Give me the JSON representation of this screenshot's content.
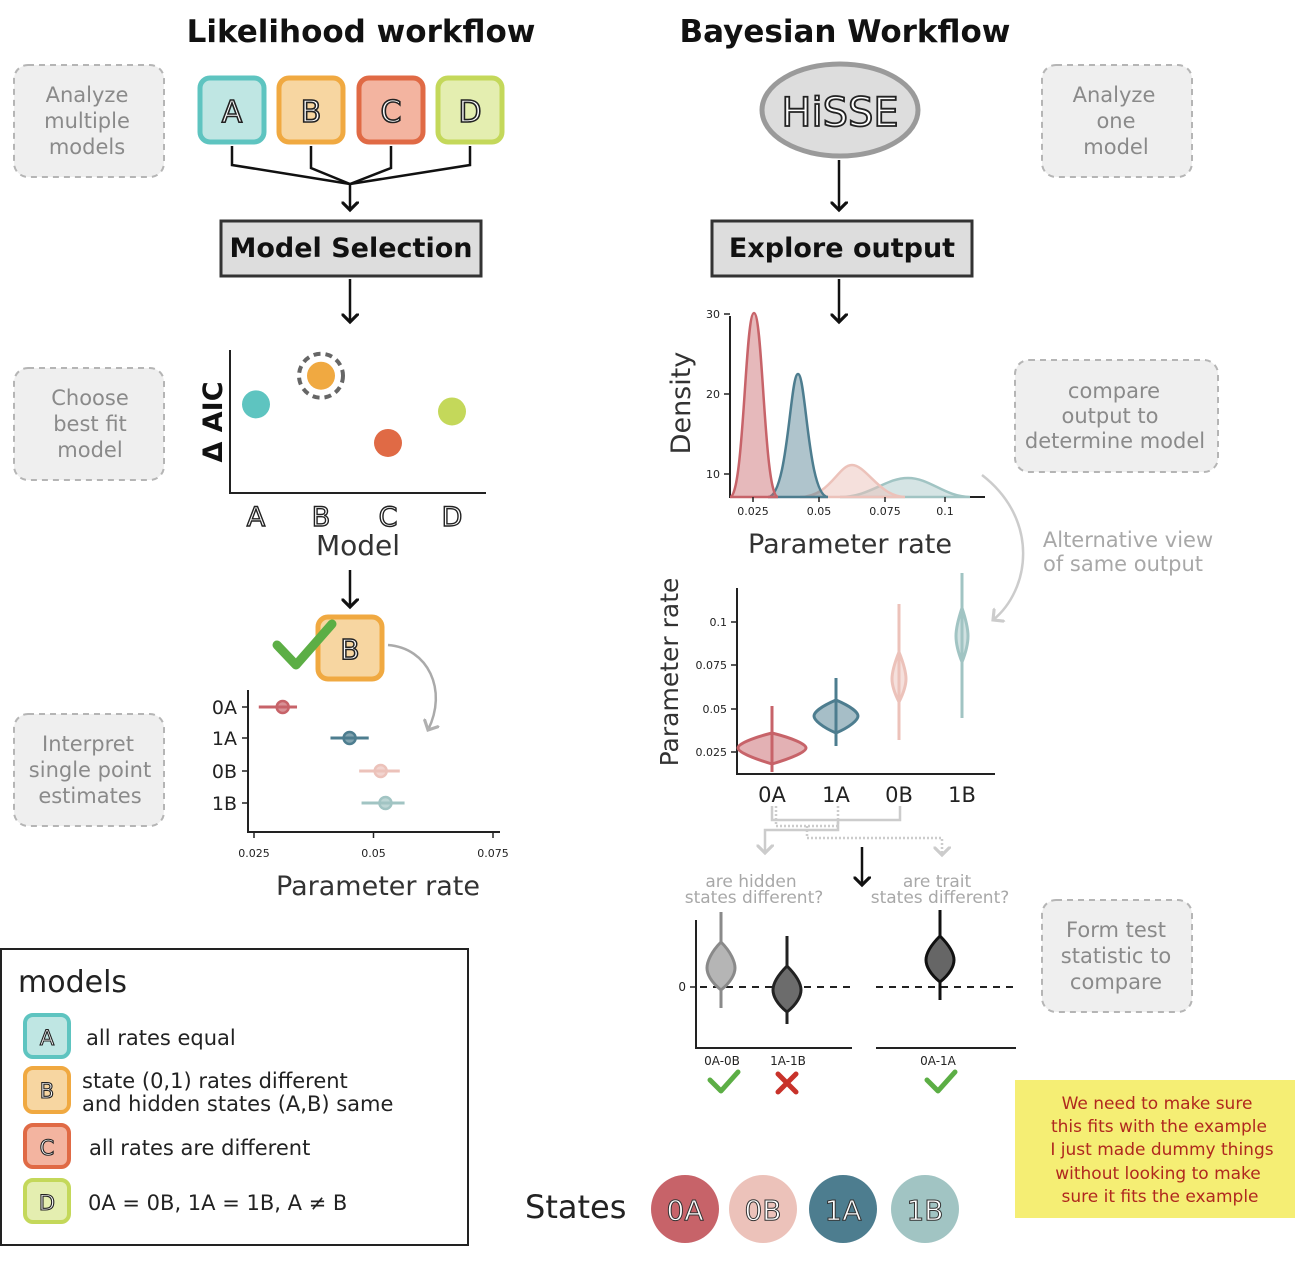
{
  "titles": {
    "likelihood": "Likelihood workflow",
    "bayesian": "Bayesian Workflow"
  },
  "notes": {
    "analyze_multiple": [
      "Analyze",
      "multiple",
      "models"
    ],
    "choose_best": [
      "Choose",
      "best fit",
      "model"
    ],
    "interpret": [
      "Interpret",
      "single point",
      "estimates"
    ],
    "analyze_one": [
      "Analyze",
      "one",
      "model"
    ],
    "compare_output": [
      "compare",
      "output to",
      "determine model"
    ],
    "form_test": [
      "Form test",
      "statistic to",
      "compare"
    ]
  },
  "models": [
    "A",
    "B",
    "C",
    "D"
  ],
  "boxes": {
    "model_selection": "Model Selection",
    "explore_output": "Explore output",
    "hisse": "HiSSE"
  },
  "colors": {
    "A": "#5ec4c0",
    "A_fill": "#bfe6e3",
    "B": "#f0a941",
    "B_fill": "#f7d6a1",
    "C": "#e06a45",
    "C_fill": "#f3b4a0",
    "D": "#c4d85a",
    "D_fill": "#e4eeb0",
    "s0A": "#c76369",
    "s0B": "#ecc2ba",
    "s1A": "#4d7d8f",
    "s1B": "#a1c4c3",
    "check": "#5cae45",
    "cross": "#c8322a"
  },
  "aic_chart": {
    "ylabel": "Δ AIC",
    "xlabel": "Model",
    "points": [
      {
        "model": "A",
        "value": 0.62
      },
      {
        "model": "B",
        "value": 0.82
      },
      {
        "model": "C",
        "value": 0.35
      },
      {
        "model": "D",
        "value": 0.57
      }
    ]
  },
  "point_estimates": {
    "xlabel": "Parameter rate",
    "ticks": [
      "0.025",
      "0.05",
      "0.075"
    ],
    "rows": [
      {
        "state": "0A",
        "value": 0.031,
        "low": 0.026,
        "high": 0.034
      },
      {
        "state": "1A",
        "value": 0.045,
        "low": 0.041,
        "high": 0.049
      },
      {
        "state": "0B",
        "value": 0.0515,
        "low": 0.047,
        "high": 0.0555
      },
      {
        "state": "1B",
        "value": 0.0525,
        "low": 0.0475,
        "high": 0.0565
      }
    ]
  },
  "density_chart": {
    "ylabel": "Density",
    "xlabel": "Parameter rate",
    "xticks": [
      "0.025",
      "0.05",
      "0.075",
      "0.1"
    ],
    "yticks": [
      "10",
      "20",
      "30"
    ]
  },
  "violin_chart": {
    "ylabel": "Parameter rate",
    "yticks": [
      "0.025",
      "0.05",
      "0.075",
      "0.1"
    ],
    "categories": [
      "0A",
      "1A",
      "0B",
      "1B"
    ]
  },
  "alt_view": [
    "Alternative view",
    "of same output"
  ],
  "tests": {
    "hidden_q": [
      "are hidden",
      "states different?"
    ],
    "trait_q": [
      "are trait",
      "states different?"
    ],
    "zero": "0",
    "labels": [
      "0A-0B",
      "1A-1B",
      "0A-1A"
    ]
  },
  "legend": {
    "title": "models",
    "items": [
      {
        "key": "A",
        "text": [
          "all rates equal"
        ]
      },
      {
        "key": "B",
        "text": [
          "state (0,1) rates different",
          "and hidden states (A,B) same"
        ]
      },
      {
        "key": "C",
        "text": [
          "all rates are different"
        ]
      },
      {
        "key": "D",
        "text": [
          "0A = 0B, 1A = 1B, A ≠ B"
        ]
      }
    ]
  },
  "states": {
    "label": "States",
    "items": [
      "0A",
      "0B",
      "1A",
      "1B"
    ]
  },
  "sticky": [
    "We need to make sure",
    "this fits with the example",
    "I just made dummy things",
    "without looking to make",
    "sure it fits the example"
  ]
}
